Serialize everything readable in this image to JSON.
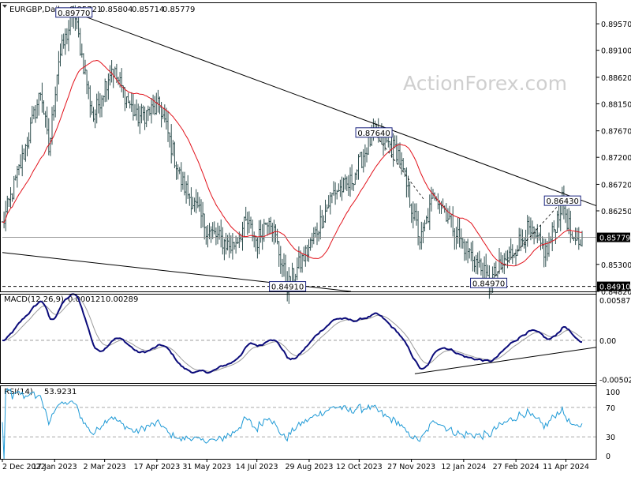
{
  "chart_data": [
    {
      "type": "ohlc",
      "symbol": "EURGBP,Daily",
      "ohlc": [
        "0.85721",
        "0.85804",
        "0.85714",
        "0.85779"
      ],
      "watermark": "ActionForex.com",
      "current_price": "0.85779",
      "price_axis_ticks": [
        "0.89570",
        "0.89100",
        "0.88620",
        "0.88150",
        "0.87670",
        "0.87200",
        "0.86720",
        "0.86250",
        "0.85300",
        "0.84820"
      ],
      "ylim": [
        0.8482,
        0.8995
      ],
      "x_ticks": [
        "2 Dec 2022",
        "17 Jan 2023",
        "2 Mar 2023",
        "17 Apr 2023",
        "31 May 2023",
        "14 Jul 2023",
        "29 Aug 2023",
        "12 Oct 2023",
        "27 Nov 2023",
        "12 Jan 2024",
        "27 Feb 2024",
        "11 Apr 2024"
      ],
      "overlays": [
        "moving-average",
        "trendlines"
      ],
      "level_line": "0.84910",
      "price_path": [
        {
          "x": "2022-12-02",
          "y": 0.86
        },
        {
          "x": "2022-12-20",
          "y": 0.872
        },
        {
          "x": "2023-01-05",
          "y": 0.884
        },
        {
          "x": "2023-01-12",
          "y": 0.873
        },
        {
          "x": "2023-01-20",
          "y": 0.889
        },
        {
          "x": "2023-02-03",
          "y": 0.8977
        },
        {
          "x": "2023-02-20",
          "y": 0.879
        },
        {
          "x": "2023-03-08",
          "y": 0.888
        },
        {
          "x": "2023-03-30",
          "y": 0.879
        },
        {
          "x": "2023-04-20",
          "y": 0.881
        },
        {
          "x": "2023-05-08",
          "y": 0.868
        },
        {
          "x": "2023-06-01",
          "y": 0.859
        },
        {
          "x": "2023-06-22",
          "y": 0.856
        },
        {
          "x": "2023-07-05",
          "y": 0.8605
        },
        {
          "x": "2023-07-14",
          "y": 0.857
        },
        {
          "x": "2023-07-25",
          "y": 0.862
        },
        {
          "x": "2023-08-10",
          "y": 0.8491
        },
        {
          "x": "2023-08-29",
          "y": 0.856
        },
        {
          "x": "2023-09-20",
          "y": 0.866
        },
        {
          "x": "2023-10-03",
          "y": 0.867
        },
        {
          "x": "2023-10-25",
          "y": 0.8764
        },
        {
          "x": "2023-11-15",
          "y": 0.873
        },
        {
          "x": "2023-12-05",
          "y": 0.857
        },
        {
          "x": "2023-12-18",
          "y": 0.866
        },
        {
          "x": "2024-01-10",
          "y": 0.857
        },
        {
          "x": "2024-01-25",
          "y": 0.853
        },
        {
          "x": "2024-02-03",
          "y": 0.8497
        },
        {
          "x": "2024-02-23",
          "y": 0.855
        },
        {
          "x": "2024-03-08",
          "y": 0.859
        },
        {
          "x": "2024-03-25",
          "y": 0.855
        },
        {
          "x": "2024-04-08",
          "y": 0.8643
        },
        {
          "x": "2024-04-18",
          "y": 0.856
        },
        {
          "x": "2024-04-26",
          "y": 0.85779
        }
      ],
      "annotations": [
        {
          "text": "0.89770",
          "x": "2023-02-03",
          "y": 0.8977
        },
        {
          "text": "0.84910",
          "x": "2023-08-10",
          "y": 0.8491
        },
        {
          "text": "0.87640",
          "x": "2023-10-25",
          "y": 0.8764
        },
        {
          "text": "0.84970",
          "x": "2024-02-03",
          "y": 0.8497
        },
        {
          "text": "0.86430",
          "x": "2024-04-08",
          "y": 0.8643
        }
      ]
    },
    {
      "type": "line",
      "indicator": "MACD",
      "header_values": [
        "MACD(12,26,9)",
        "0.000121",
        "0.00289"
      ],
      "axis_ticks": [
        "0.00587",
        "0.00",
        "-0.005021"
      ],
      "ylim": [
        -0.0055,
        0.006
      ]
    },
    {
      "type": "line",
      "indicator": "RSI",
      "header_values": [
        "RSI(14)",
        "53.9231"
      ],
      "axis_ticks": [
        "100",
        "70",
        "30",
        "0"
      ],
      "ylim": [
        0,
        100
      ]
    }
  ],
  "colors": {
    "background": "#ffffff",
    "bars": "#2f4f4f",
    "moving_average": "#e2121b",
    "macd_line": "#0b0b7a",
    "signal_line": "#9b9b9b",
    "rsi_line": "#1f9ad6",
    "label_border": "#1a237e",
    "trendline": "#000000",
    "gridline": "#8c8c8c",
    "watermark": "#cfcfcf"
  }
}
